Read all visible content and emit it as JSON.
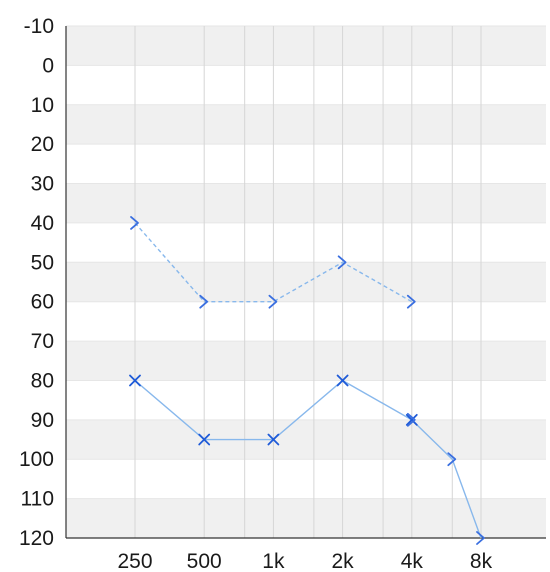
{
  "chart_data": {
    "type": "line",
    "title": "",
    "xlabel": "",
    "ylabel": "",
    "x_ticks": [
      "250",
      "500",
      "1k",
      "2k",
      "4k",
      "8k"
    ],
    "x_values_hz": [
      250,
      500,
      750,
      1000,
      1500,
      2000,
      3000,
      4000,
      6000,
      8000
    ],
    "y_ticks": [
      "-10",
      "0",
      "10",
      "20",
      "30",
      "40",
      "50",
      "60",
      "70",
      "80",
      "90",
      "100",
      "110",
      "120"
    ],
    "ylim": [
      -10,
      120
    ],
    "y_inverted": true,
    "grid": true,
    "alternating_bands": true,
    "colors": {
      "line": "#88b8ec",
      "marker_x": "#1f5bd8",
      "marker_bracket": "#3a6fe0",
      "band": "#f0f0f0"
    },
    "series": [
      {
        "style": "dashed",
        "marker": "right-bracket",
        "points": [
          {
            "x": 250,
            "y": 40
          },
          {
            "x": 500,
            "y": 60
          },
          {
            "x": 1000,
            "y": 60
          },
          {
            "x": 2000,
            "y": 50
          },
          {
            "x": 4000,
            "y": 60
          }
        ]
      },
      {
        "style": "solid",
        "marker": "x",
        "points": [
          {
            "x": 250,
            "y": 80
          },
          {
            "x": 500,
            "y": 95
          },
          {
            "x": 1000,
            "y": 95
          },
          {
            "x": 2000,
            "y": 80
          },
          {
            "x": 4000,
            "y": 90
          }
        ]
      },
      {
        "style": "solid",
        "marker": "right-bracket",
        "points": [
          {
            "x": 4000,
            "y": 90
          },
          {
            "x": 6000,
            "y": 100
          },
          {
            "x": 8000,
            "y": 120
          }
        ]
      }
    ]
  }
}
